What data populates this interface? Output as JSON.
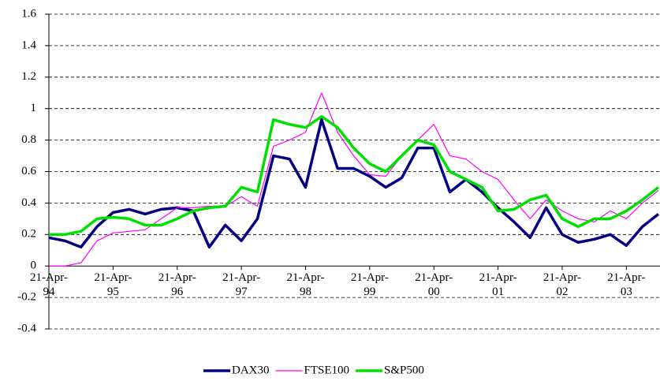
{
  "chart_data": {
    "type": "line",
    "categories": [
      "21-Apr-94",
      null,
      null,
      null,
      "21-Apr-95",
      null,
      null,
      null,
      "21-Apr-96",
      null,
      null,
      null,
      "21-Apr-97",
      null,
      null,
      null,
      "21-Apr-98",
      null,
      null,
      null,
      "21-Apr-99",
      null,
      null,
      null,
      "21-Apr-00",
      null,
      null,
      null,
      "21-Apr-01",
      null,
      null,
      null,
      "21-Apr-02",
      null,
      null,
      null,
      "21-Apr-03",
      null,
      null
    ],
    "series": [
      {
        "name": "DAX30",
        "color": "#000080",
        "width": 3.5,
        "values": [
          0.18,
          0.16,
          0.12,
          0.25,
          0.34,
          0.36,
          0.33,
          0.36,
          0.37,
          0.35,
          0.12,
          0.26,
          0.16,
          0.3,
          0.7,
          0.68,
          0.5,
          0.93,
          0.62,
          0.62,
          0.57,
          0.5,
          0.56,
          0.75,
          0.75,
          0.47,
          0.55,
          0.47,
          0.37,
          0.28,
          0.18,
          0.37,
          0.2,
          0.15,
          0.17,
          0.2,
          0.13,
          0.25,
          0.33
        ]
      },
      {
        "name": "FTSE100",
        "color": "#ff00ff",
        "width": 1.2,
        "values": [
          0.0,
          0.0,
          0.02,
          0.16,
          0.21,
          0.22,
          0.23,
          0.3,
          0.37,
          0.37,
          0.38,
          0.38,
          0.44,
          0.38,
          0.76,
          0.8,
          0.85,
          1.1,
          0.85,
          0.7,
          0.58,
          0.57,
          0.7,
          0.8,
          0.9,
          0.7,
          0.68,
          0.6,
          0.55,
          0.42,
          0.3,
          0.42,
          0.35,
          0.3,
          0.28,
          0.35,
          0.3,
          0.4,
          0.48
        ]
      },
      {
        "name": "S&P500",
        "color": "#00e000",
        "width": 3.5,
        "values": [
          0.2,
          0.2,
          0.22,
          0.3,
          0.31,
          0.3,
          0.26,
          0.26,
          0.3,
          0.35,
          0.37,
          0.38,
          0.5,
          0.47,
          0.93,
          0.9,
          0.88,
          0.95,
          0.88,
          0.75,
          0.65,
          0.6,
          0.7,
          0.8,
          0.77,
          0.6,
          0.55,
          0.5,
          0.35,
          0.36,
          0.42,
          0.45,
          0.3,
          0.25,
          0.3,
          0.3,
          0.35,
          0.42,
          0.5
        ]
      }
    ],
    "ylim": [
      -0.4,
      1.6
    ],
    "yticks": [
      -0.4,
      -0.2,
      0,
      0.2,
      0.4,
      0.6,
      0.8,
      1,
      1.2,
      1.4,
      1.6
    ],
    "grid": true,
    "legend": "bottom"
  }
}
